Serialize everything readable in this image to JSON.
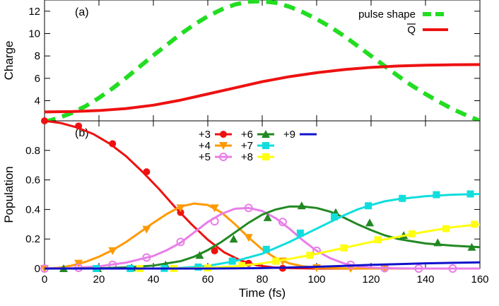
{
  "chart_data": [
    {
      "panel": "(a)",
      "type": "line",
      "ylabel": "Charge",
      "xlim": [
        0,
        160
      ],
      "ylim": [
        2.2,
        13
      ],
      "yticks": [
        4,
        6,
        8,
        10,
        12
      ],
      "legend_position": "top-right",
      "series": [
        {
          "name": "pulse shape",
          "color": "#22dd22",
          "style": "dashed",
          "x": [
            0,
            5,
            10,
            15,
            20,
            25,
            30,
            35,
            40,
            45,
            50,
            55,
            60,
            65,
            70,
            75,
            80,
            85,
            90,
            95,
            100,
            105,
            110,
            115,
            120,
            125,
            130,
            135,
            140,
            145,
            150,
            155,
            160
          ],
          "y": [
            2.1,
            2.45,
            2.9,
            3.5,
            4.25,
            5.1,
            6.05,
            7.05,
            8.05,
            9.0,
            9.95,
            10.8,
            11.55,
            12.15,
            12.6,
            12.85,
            12.9,
            12.75,
            12.4,
            11.9,
            11.3,
            10.6,
            9.8,
            8.9,
            8.0,
            7.1,
            6.2,
            5.35,
            4.6,
            3.9,
            3.25,
            2.7,
            2.2
          ]
        },
        {
          "name": "Q",
          "color": "#ee1111",
          "style": "solid",
          "x": [
            0,
            10,
            20,
            30,
            40,
            50,
            60,
            70,
            80,
            90,
            100,
            110,
            120,
            130,
            140,
            150,
            160
          ],
          "y": [
            3.0,
            3.03,
            3.12,
            3.3,
            3.6,
            4.05,
            4.6,
            5.15,
            5.7,
            6.15,
            6.5,
            6.78,
            6.98,
            7.1,
            7.17,
            7.21,
            7.23
          ]
        }
      ]
    },
    {
      "panel": "(b)",
      "type": "line",
      "xlabel": "Time (fs)",
      "ylabel": "Population",
      "xlim": [
        0,
        160
      ],
      "ylim": [
        0,
        1
      ],
      "xticks": [
        0,
        20,
        40,
        60,
        80,
        100,
        120,
        140,
        160
      ],
      "yticks": [
        0,
        0.2,
        0.4,
        0.6,
        0.8
      ],
      "legend_position": "top-center",
      "series": [
        {
          "name": "+3",
          "color": "#ee1111",
          "marker": "circle-filled",
          "x": [
            0,
            6,
            12,
            18,
            24,
            30,
            36,
            42,
            48,
            54,
            60,
            66,
            72,
            78,
            84,
            90,
            100,
            110,
            120,
            140,
            160
          ],
          "y": [
            1.0,
            0.985,
            0.955,
            0.91,
            0.845,
            0.76,
            0.655,
            0.54,
            0.415,
            0.3,
            0.195,
            0.11,
            0.055,
            0.022,
            0.008,
            0.003,
            0.0,
            0.0,
            0.0,
            0.0,
            0.0
          ],
          "marker_x": [
            0,
            12.5,
            25,
            37.5,
            50,
            62.5,
            75,
            87.5
          ],
          "marker_y": [
            1.0,
            0.965,
            0.845,
            0.655,
            0.38,
            0.12,
            0.035,
            0.002
          ]
        },
        {
          "name": "+4",
          "color": "#ff9900",
          "marker": "triangle-down-filled",
          "x": [
            0,
            5,
            10,
            15,
            20,
            25,
            30,
            35,
            40,
            45,
            50,
            55,
            60,
            65,
            70,
            75,
            80,
            85,
            90,
            95,
            100,
            110,
            120,
            140,
            160
          ],
          "y": [
            0.0,
            0.005,
            0.02,
            0.045,
            0.08,
            0.125,
            0.18,
            0.245,
            0.31,
            0.37,
            0.42,
            0.44,
            0.43,
            0.38,
            0.3,
            0.21,
            0.13,
            0.07,
            0.035,
            0.015,
            0.006,
            0.001,
            0.0,
            0.0,
            0.0
          ],
          "marker_x": [
            0,
            12.5,
            25,
            37.5,
            50,
            62.5,
            75,
            87.5,
            100,
            112.5,
            125
          ],
          "marker_y": [
            0.0,
            0.035,
            0.12,
            0.265,
            0.41,
            0.41,
            0.21,
            0.05,
            0.005,
            0.0,
            0.0
          ]
        },
        {
          "name": "+5",
          "color": "#e87ee8",
          "marker": "circle-open",
          "x": [
            0,
            10,
            20,
            30,
            40,
            45,
            50,
            55,
            60,
            65,
            70,
            75,
            80,
            85,
            90,
            95,
            100,
            105,
            110,
            115,
            120,
            130,
            140,
            150,
            160
          ],
          "y": [
            0.0,
            0.003,
            0.015,
            0.04,
            0.085,
            0.125,
            0.175,
            0.245,
            0.315,
            0.37,
            0.405,
            0.41,
            0.39,
            0.34,
            0.27,
            0.19,
            0.12,
            0.07,
            0.035,
            0.015,
            0.006,
            0.001,
            0.0,
            0.0,
            0.0
          ],
          "marker_x": [
            0,
            12.5,
            25,
            37.5,
            50,
            62.5,
            75,
            87.5,
            100,
            112.5,
            125,
            137.5,
            150
          ],
          "marker_y": [
            0.0,
            0.005,
            0.025,
            0.075,
            0.18,
            0.32,
            0.41,
            0.315,
            0.12,
            0.025,
            0.003,
            0.0,
            0.0
          ]
        },
        {
          "name": "+6",
          "color": "#228822",
          "marker": "triangle-up-filled",
          "x": [
            0,
            10,
            20,
            30,
            40,
            50,
            55,
            60,
            65,
            70,
            75,
            80,
            85,
            90,
            95,
            100,
            105,
            110,
            115,
            120,
            125,
            130,
            135,
            140,
            150,
            160
          ],
          "y": [
            0.0,
            0.0,
            0.002,
            0.008,
            0.02,
            0.05,
            0.08,
            0.125,
            0.18,
            0.245,
            0.31,
            0.365,
            0.4,
            0.42,
            0.42,
            0.41,
            0.385,
            0.345,
            0.3,
            0.26,
            0.225,
            0.2,
            0.185,
            0.17,
            0.155,
            0.145
          ],
          "marker_x": [
            7,
            19.5,
            32,
            44.5,
            57,
            69.5,
            82,
            94.5,
            107,
            119.5,
            132,
            144.5,
            157
          ],
          "marker_y": [
            0.0,
            0.0,
            0.006,
            0.025,
            0.09,
            0.2,
            0.345,
            0.425,
            0.38,
            0.31,
            0.225,
            0.175,
            0.145
          ]
        },
        {
          "name": "+7",
          "color": "#11dddd",
          "marker": "square-filled",
          "x": [
            0,
            20,
            40,
            50,
            60,
            70,
            80,
            90,
            100,
            110,
            115,
            120,
            125,
            130,
            140,
            150,
            160
          ],
          "y": [
            0.0,
            0.0,
            0.0,
            0.004,
            0.018,
            0.05,
            0.1,
            0.18,
            0.27,
            0.36,
            0.4,
            0.43,
            0.455,
            0.47,
            0.49,
            0.5,
            0.505
          ],
          "marker_x": [
            19,
            31.5,
            44,
            56.5,
            69,
            81.5,
            94,
            106.5,
            119,
            131.5,
            144,
            156.5
          ],
          "marker_y": [
            0.0,
            0.0,
            0.001,
            0.01,
            0.05,
            0.13,
            0.24,
            0.35,
            0.425,
            0.475,
            0.5,
            0.505
          ]
        },
        {
          "name": "+8",
          "color": "#ffff11",
          "marker": "square-filled",
          "x": [
            0,
            40,
            50,
            60,
            70,
            80,
            90,
            100,
            110,
            120,
            130,
            140,
            150,
            160
          ],
          "y": [
            0.0,
            0.0,
            0.001,
            0.005,
            0.015,
            0.035,
            0.065,
            0.1,
            0.14,
            0.18,
            0.215,
            0.25,
            0.28,
            0.3
          ],
          "marker_x": [
            35,
            47.5,
            60,
            72.5,
            85,
            97.5,
            110,
            122.5,
            135,
            147.5,
            158
          ],
          "marker_y": [
            0.0,
            0.0,
            0.004,
            0.02,
            0.05,
            0.09,
            0.14,
            0.195,
            0.235,
            0.27,
            0.3
          ]
        },
        {
          "name": "+9",
          "color": "#1111cc",
          "marker": "none",
          "x": [
            0,
            60,
            70,
            80,
            90,
            100,
            110,
            120,
            130,
            140,
            150,
            160
          ],
          "y": [
            0.0,
            0.0,
            0.001,
            0.003,
            0.007,
            0.012,
            0.018,
            0.025,
            0.03,
            0.035,
            0.039,
            0.042
          ]
        }
      ]
    }
  ]
}
